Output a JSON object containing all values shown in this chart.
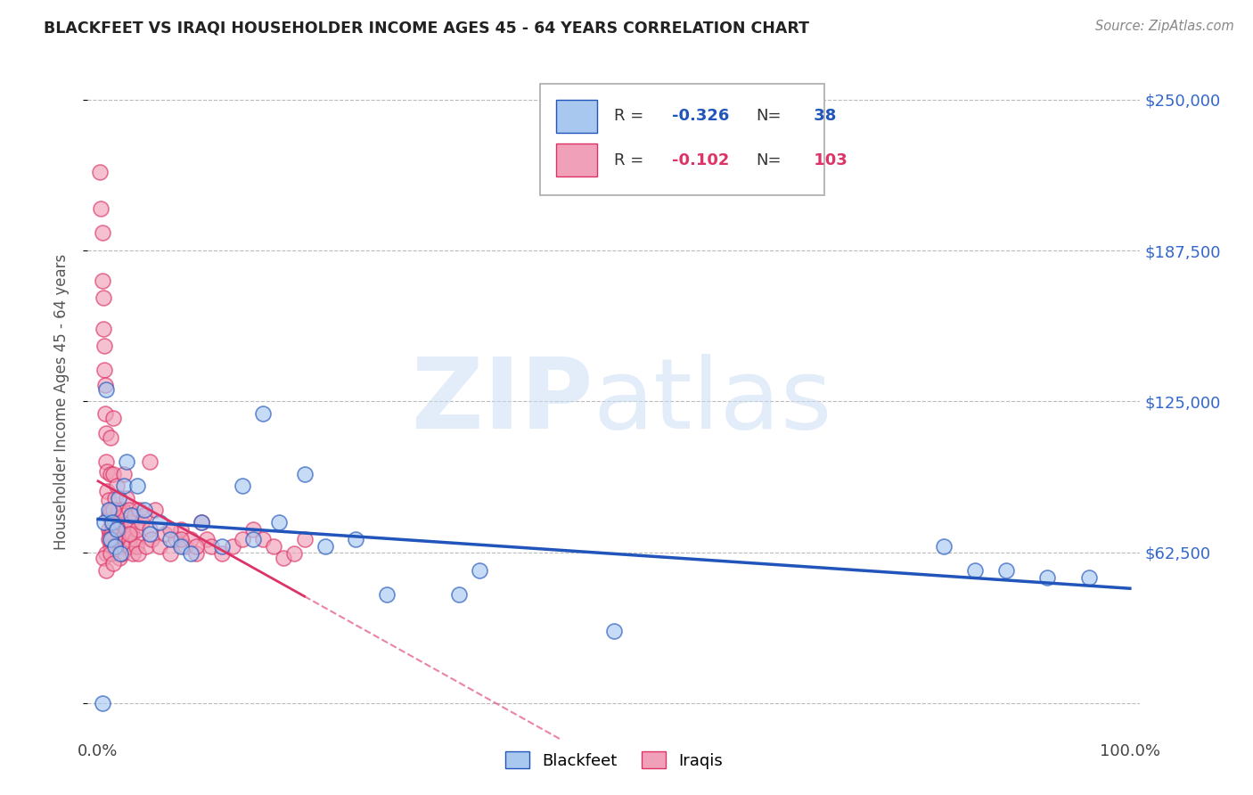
{
  "title": "BLACKFEET VS IRAQI HOUSEHOLDER INCOME AGES 45 - 64 YEARS CORRELATION CHART",
  "source": "Source: ZipAtlas.com",
  "ylabel": "Householder Income Ages 45 - 64 years",
  "yticks": [
    0,
    62500,
    125000,
    187500,
    250000
  ],
  "blackfeet_R": -0.326,
  "blackfeet_N": 38,
  "iraqi_R": -0.102,
  "iraqi_N": 103,
  "blackfeet_color": "#a8c8f0",
  "iraqi_color": "#f0a0b8",
  "blackfeet_line_color": "#2255bb",
  "iraqi_line_color": "#dd3366",
  "background_color": "#ffffff",
  "grid_color": "#bbbbbb",
  "title_color": "#222222",
  "blackfeet_x": [
    0.004,
    0.006,
    0.008,
    0.01,
    0.012,
    0.014,
    0.016,
    0.018,
    0.02,
    0.022,
    0.025,
    0.028,
    0.032,
    0.038,
    0.045,
    0.05,
    0.06,
    0.07,
    0.08,
    0.09,
    0.1,
    0.12,
    0.14,
    0.15,
    0.16,
    0.175,
    0.2,
    0.22,
    0.25,
    0.28,
    0.35,
    0.37,
    0.5,
    0.82,
    0.85,
    0.88,
    0.92,
    0.96
  ],
  "blackfeet_y": [
    0,
    75000,
    130000,
    80000,
    68000,
    75000,
    65000,
    72000,
    85000,
    62000,
    90000,
    100000,
    78000,
    90000,
    80000,
    70000,
    75000,
    68000,
    65000,
    62000,
    75000,
    65000,
    90000,
    68000,
    120000,
    75000,
    95000,
    65000,
    68000,
    45000,
    45000,
    55000,
    30000,
    65000,
    55000,
    55000,
    52000,
    52000
  ],
  "iraqi_x": [
    0.002,
    0.003,
    0.004,
    0.004,
    0.005,
    0.005,
    0.006,
    0.006,
    0.007,
    0.007,
    0.008,
    0.008,
    0.009,
    0.009,
    0.01,
    0.01,
    0.01,
    0.011,
    0.011,
    0.012,
    0.012,
    0.012,
    0.013,
    0.013,
    0.014,
    0.014,
    0.015,
    0.015,
    0.016,
    0.016,
    0.017,
    0.017,
    0.018,
    0.018,
    0.019,
    0.019,
    0.02,
    0.02,
    0.021,
    0.021,
    0.022,
    0.022,
    0.023,
    0.023,
    0.024,
    0.025,
    0.025,
    0.026,
    0.027,
    0.028,
    0.028,
    0.029,
    0.03,
    0.03,
    0.031,
    0.032,
    0.033,
    0.034,
    0.035,
    0.036,
    0.037,
    0.038,
    0.039,
    0.04,
    0.042,
    0.045,
    0.047,
    0.05,
    0.052,
    0.055,
    0.06,
    0.065,
    0.07,
    0.075,
    0.08,
    0.085,
    0.09,
    0.095,
    0.1,
    0.105,
    0.11,
    0.12,
    0.13,
    0.14,
    0.15,
    0.16,
    0.17,
    0.18,
    0.19,
    0.2,
    0.05,
    0.07,
    0.08,
    0.095,
    0.03,
    0.015,
    0.012,
    0.01,
    0.008,
    0.005,
    0.008,
    0.012,
    0.015
  ],
  "iraqi_y": [
    220000,
    205000,
    195000,
    175000,
    168000,
    155000,
    148000,
    138000,
    132000,
    120000,
    112000,
    100000,
    96000,
    88000,
    84000,
    78000,
    72000,
    70000,
    68000,
    110000,
    95000,
    80000,
    75000,
    70000,
    68000,
    65000,
    118000,
    95000,
    85000,
    75000,
    72000,
    65000,
    90000,
    78000,
    72000,
    65000,
    80000,
    70000,
    65000,
    60000,
    75000,
    68000,
    65000,
    62000,
    80000,
    95000,
    78000,
    70000,
    68000,
    85000,
    72000,
    65000,
    80000,
    68000,
    65000,
    75000,
    70000,
    62000,
    78000,
    68000,
    65000,
    72000,
    62000,
    80000,
    75000,
    78000,
    65000,
    72000,
    68000,
    80000,
    65000,
    70000,
    62000,
    68000,
    72000,
    65000,
    68000,
    62000,
    75000,
    68000,
    65000,
    62000,
    65000,
    68000,
    72000,
    68000,
    65000,
    60000,
    62000,
    68000,
    100000,
    72000,
    68000,
    65000,
    70000,
    80000,
    65000,
    68000,
    62000,
    60000,
    55000,
    62000,
    58000
  ]
}
